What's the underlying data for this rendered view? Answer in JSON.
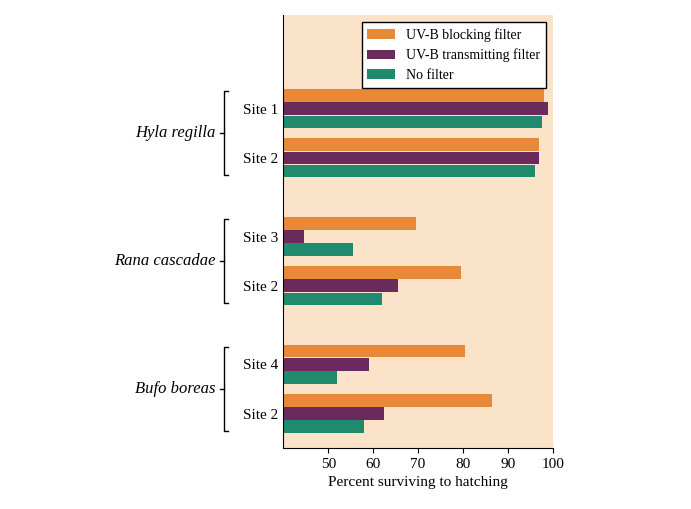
{
  "chart_data": {
    "type": "bar",
    "orientation": "horizontal",
    "x_label": "Percent surviving to hatching",
    "categories": [
      "Site 1",
      "Site 2",
      "Site 3",
      "Site 2",
      "Site 4",
      "Site 2"
    ],
    "groups": [
      "Hyla regilla",
      "Hyla regilla",
      "Rana cascadae",
      "Rana cascadae",
      "Bufo boreas",
      "Bufo boreas"
    ],
    "series": [
      {
        "name": "UV-B blocking filter",
        "color": "#e8893a",
        "values": [
          98,
          97,
          69.5,
          79.5,
          80.5,
          86.5
        ]
      },
      {
        "name": "UV-B transmitting filter",
        "color": "#6b2a5e",
        "values": [
          99,
          97,
          44.5,
          65.5,
          59,
          62.5
        ]
      },
      {
        "name": "No filter",
        "color": "#1f8a6e",
        "values": [
          97.5,
          96,
          55.5,
          62,
          52,
          58
        ]
      }
    ],
    "xlim": [
      40,
      100
    ],
    "xticks": [
      50,
      60,
      70,
      80,
      90,
      100
    ],
    "legend": "upper right"
  }
}
